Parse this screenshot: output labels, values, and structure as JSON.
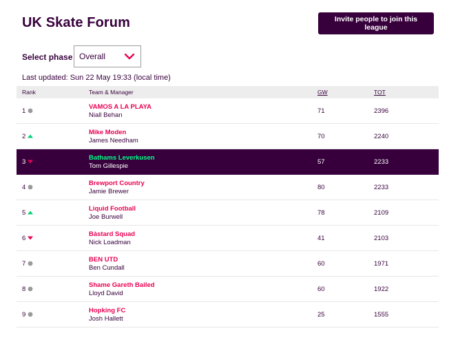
{
  "header": {
    "title": "UK Skate Forum",
    "invite_label": "Invite people to join this league"
  },
  "phase": {
    "label": "Select phase",
    "selected": "Overall"
  },
  "last_updated": "Last updated: Sun 22 May 19:33 (local time)",
  "table": {
    "headers": {
      "rank": "Rank",
      "team": "Team & Manager",
      "gw": "GW",
      "tot": "TOT"
    },
    "rows": [
      {
        "rank": "1",
        "movement": "same",
        "team": "VAMOS A LA PLAYA",
        "manager": "Niall Behan",
        "gw": "71",
        "tot": "2396"
      },
      {
        "rank": "2",
        "movement": "up",
        "team": "Mike Moden",
        "manager": "James Needham",
        "gw": "70",
        "tot": "2240"
      },
      {
        "rank": "3",
        "movement": "down",
        "team": "Bathams Leverkusen",
        "manager": "Tom Gillespie",
        "gw": "57",
        "tot": "2233",
        "highlight": true
      },
      {
        "rank": "4",
        "movement": "same",
        "team": "Brewport Country",
        "manager": "Jamie Brewer",
        "gw": "80",
        "tot": "2233"
      },
      {
        "rank": "5",
        "movement": "up",
        "team": "Liquid Football",
        "manager": "Joe Burwell",
        "gw": "78",
        "tot": "2109"
      },
      {
        "rank": "6",
        "movement": "down",
        "team": "Bàstard Squad",
        "manager": "Nick Loadman",
        "gw": "41",
        "tot": "2103"
      },
      {
        "rank": "7",
        "movement": "same",
        "team": "BEN UTD",
        "manager": "Ben Cundall",
        "gw": "60",
        "tot": "1971"
      },
      {
        "rank": "8",
        "movement": "same",
        "team": "Shame Gareth Bailed",
        "manager": "Lloyd David",
        "gw": "60",
        "tot": "1922"
      },
      {
        "rank": "9",
        "movement": "same",
        "team": "Hopking FC",
        "manager": "Josh Hallett",
        "gw": "25",
        "tot": "1555"
      }
    ]
  },
  "colors": {
    "primary": "#37003c",
    "accent": "#e90052",
    "highlight_team": "#00ff87",
    "up": "#01d16f",
    "down": "#e90052",
    "same": "#9a9a9a"
  },
  "icons": {
    "up": "triangle-up-icon",
    "down": "triangle-down-icon",
    "same": "circle-icon",
    "dropdown": "chevron-down-icon"
  }
}
